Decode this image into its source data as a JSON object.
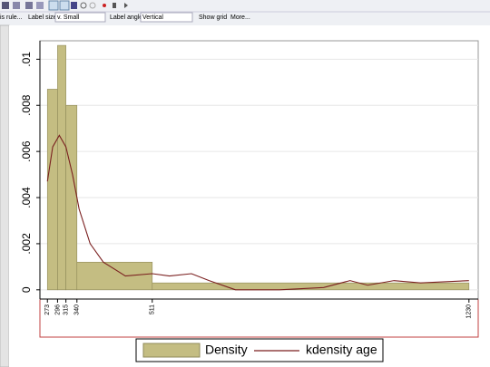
{
  "toolbar": {
    "items": [
      "is rule...",
      "Label size:",
      "v. Small",
      "Label angle:",
      "Vertical",
      "Show grid",
      "More..."
    ]
  },
  "chart_data": {
    "type": "histogram",
    "bins": [
      273,
      296,
      315,
      340,
      511,
      1230
    ],
    "series": [
      {
        "name": "Density",
        "color": "#c4bd82",
        "values": [
          0.0087,
          0.0106,
          0.008,
          0.0012,
          0.0003
        ]
      }
    ],
    "overlay": {
      "type": "line",
      "name": "kdensity age",
      "color": "#7a1f1f",
      "x": [
        273,
        285,
        300,
        315,
        330,
        345,
        370,
        400,
        450,
        511,
        550,
        600,
        640,
        700,
        800,
        900,
        960,
        1000,
        1060,
        1120,
        1230
      ],
      "values": [
        0.0047,
        0.0062,
        0.0067,
        0.0062,
        0.005,
        0.0035,
        0.002,
        0.0012,
        0.0006,
        0.0007,
        0.0006,
        0.0007,
        0.0004,
        0,
        0,
        0.0001,
        0.0004,
        0.0002,
        0.0004,
        0.0003,
        0.0004
      ]
    },
    "xlim": [
      256,
      1251
    ],
    "xticks": [
      273,
      296,
      315,
      340,
      511,
      1230
    ],
    "ylim": [
      -0.0004,
      0.0108
    ],
    "yticks": [
      0,
      {
        "value": 0.002,
        "label": ".002"
      },
      {
        "value": 0.004,
        "label": ".004"
      },
      {
        "value": 0.006,
        "label": ".006"
      },
      {
        "value": 0.008,
        "label": ".008"
      },
      {
        "value": 0.01,
        "label": ".01"
      }
    ],
    "grid": true
  }
}
